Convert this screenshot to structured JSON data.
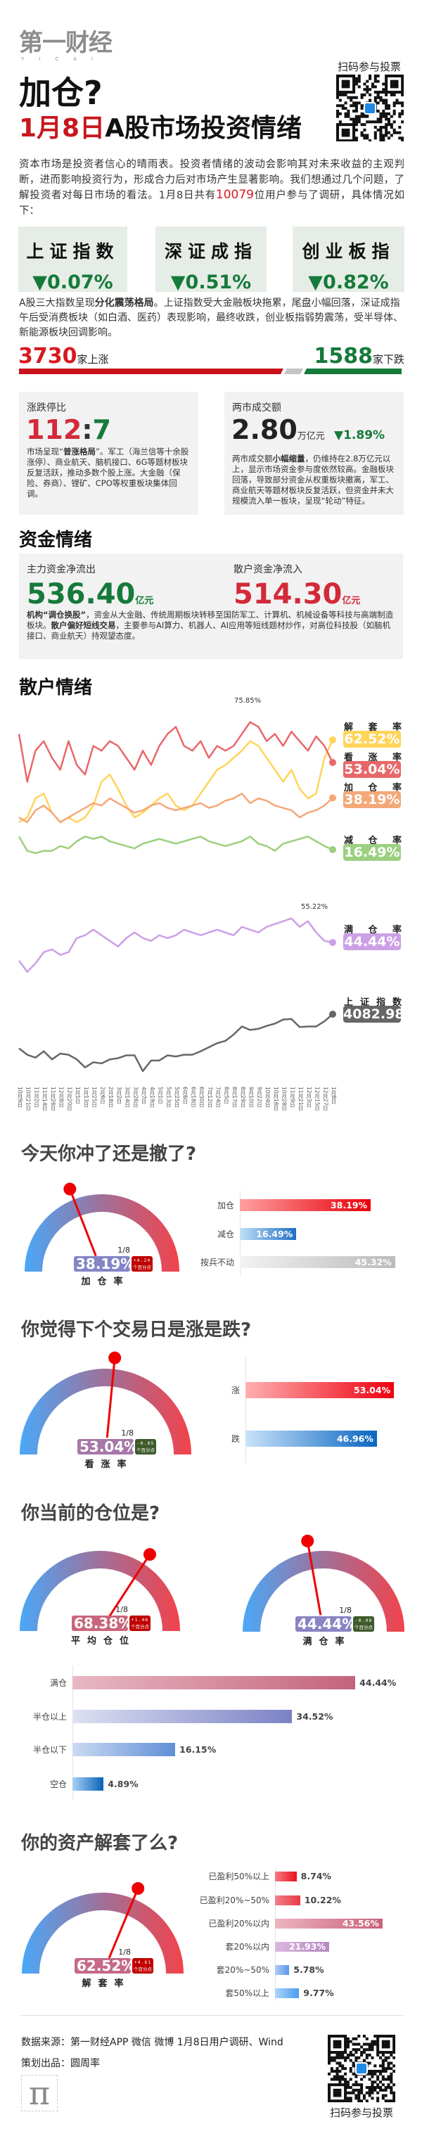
{
  "brand": {
    "logo": "第一财经",
    "logo_sub": "YICAI"
  },
  "qr": {
    "label": "扫码参与投票"
  },
  "header": {
    "title": "加仓?",
    "date": "1月8日",
    "subtitle_rest": "A股市场投资情绪"
  },
  "intro": {
    "before": "资本市场是投资者信心的晴雨表。投资者情绪的波动会影响其对未来收益的主观判断，进而影响投资行为，形成合力后对市场产生显著影响。我们想通过几个问题，了解投资者对每日市场的看法。1月8日共有",
    "count": "10079",
    "after": "位用户参与了调研，具体情况如下："
  },
  "indices": [
    {
      "name": "上证指数",
      "change": "▼0.07%"
    },
    {
      "name": "深证成指",
      "change": "▼0.51%"
    },
    {
      "name": "创业板指",
      "change": "▼0.82%"
    }
  ],
  "summary": {
    "pre": "A股三大指数呈现",
    "bold": "分化震荡格局",
    "post": "。上证指数受大金融板块拖累，尾盘小幅回落，深证成指午后受消费板块（如白酒、医药）表现影响，最终收跌，创业板指弱势震荡，受半导体、新能源板块回调影响。"
  },
  "breadth": {
    "up": "3730",
    "up_label": "家上涨",
    "down": "1588",
    "down_label": "家下跌",
    "up_count": 3730,
    "down_count": 1588
  },
  "limit_card": {
    "label": "涨跌停比",
    "up": "112",
    "sep": ":",
    "down": "7",
    "desc_pre": "市场呈现“",
    "desc_bold": "普涨格局",
    "desc_post": "”。军工（海兰信等十余股涨停）、商业航天、脑机接口、6G等题材板块反复活跃，推动多数个股上涨。大金融（保险、券商）、锂矿、CPO等权重板块集体回调。"
  },
  "turnover_card": {
    "label": "两市成交额",
    "value": "2.80",
    "unit": "万亿元",
    "change": "▼1.89%",
    "desc_pre": "两市成交额",
    "desc_bold": "小幅缩量",
    "desc_post": "，仍维持在2.8万亿元以上，显示市场资金参与度依然较高。金融板块回落，导致部分资金从权重板块撤离，军工、商业航天等题材板块反复活跃，但资金并未大规模流入单一板块，呈现“轮动”特征。"
  },
  "funds": {
    "title": "资金情绪",
    "main_label": "主力资金净流出",
    "main_value": "536.40",
    "main_unit": "亿元",
    "retail_label": "散户资金净流入",
    "retail_value": "514.30",
    "retail_unit": "亿元",
    "desc_b1": "机构“调仓换股”",
    "desc_1": "，资金从大金融、传统周期板块转移至国防军工、计算机、机械设备等科技与高端制造板块。",
    "desc_b2": "散户偏好短线交易",
    "desc_2": "，主要参与AI算力、机器人、AI应用等短线题材炒作，对高位科技股（如脑机接口、商业航天）持观望态度。"
  },
  "retail": {
    "title": "散户情绪"
  },
  "chart_data": [
    {
      "type": "line",
      "title": "",
      "x_labels": [
        "10月9日",
        "10月21日",
        "11月2日",
        "11月14日",
        "11月26日",
        "12月8日",
        "12月20日",
        "1月1日",
        "1月13日",
        "1月25日",
        "2月6日",
        "2月18日",
        "3月2日",
        "3月14日",
        "3月26日",
        "4月7日",
        "4月19日",
        "5月1日",
        "5月13日",
        "5月25日",
        "6月6日",
        "6月18日",
        "6月30日",
        "7月12日",
        "7月24日",
        "8月5日",
        "8月17日",
        "8月29日",
        "9月10日",
        "9月22日",
        "10月4日",
        "10月16日",
        "10月28日",
        "11月9日",
        "11月21日",
        "12月3日",
        "12月15日",
        "12月27日",
        "1月8日"
      ],
      "annotations": [
        {
          "text": "75.85%",
          "value": 75.85
        }
      ],
      "series": [
        {
          "name": "解套率",
          "latest": "62.52%",
          "color": "#ffd45a",
          "values": [
            28,
            30,
            38,
            40,
            32,
            28,
            30,
            28,
            30,
            35,
            45,
            48,
            42,
            35,
            30,
            32,
            35,
            38,
            40,
            35,
            33,
            35,
            40,
            45,
            50,
            52,
            55,
            58,
            62,
            60,
            55,
            50,
            45,
            50,
            42,
            38,
            40,
            55,
            62.52
          ]
        },
        {
          "name": "看涨率",
          "latest": "53.04%",
          "color": "#e8686a",
          "values": [
            65,
            45,
            58,
            62,
            55,
            50,
            62,
            52,
            48,
            60,
            58,
            62,
            60,
            55,
            50,
            58,
            52,
            60,
            65,
            68,
            60,
            58,
            62,
            55,
            60,
            58,
            60,
            65,
            70,
            68,
            62,
            65,
            60,
            66,
            62,
            58,
            64,
            60,
            53.04
          ]
        },
        {
          "name": "加仓率",
          "latest": "38.19%",
          "color": "#f4a878",
          "values": [
            30,
            28,
            33,
            35,
            32,
            28,
            30,
            32,
            34,
            36,
            35,
            38,
            36,
            34,
            32,
            33,
            35,
            36,
            34,
            33,
            34,
            35,
            36,
            34,
            35,
            37,
            38,
            40,
            36,
            38,
            37,
            35,
            34,
            33,
            30,
            32,
            33,
            35,
            38.19
          ]
        },
        {
          "name": "减仓率",
          "latest": "16.49%",
          "color": "#9ccf80",
          "values": [
            22,
            16,
            15,
            16,
            16,
            18,
            17,
            20,
            22,
            21,
            22,
            20,
            19,
            18,
            17,
            19,
            20,
            21,
            20,
            19,
            20,
            21,
            22,
            20,
            19,
            18,
            19,
            20,
            22,
            19,
            18,
            16,
            19,
            20,
            21,
            22,
            20,
            18,
            16.49
          ]
        }
      ]
    },
    {
      "type": "line",
      "title": "",
      "annotations": [
        {
          "text": "55.22%",
          "value": 55.22
        }
      ],
      "series": [
        {
          "name": "满仓率",
          "latest": "44.44%",
          "color": "#cc9fe6",
          "values": [
            38,
            34,
            37,
            41,
            42,
            40,
            41,
            46,
            47,
            49,
            47,
            45,
            43,
            46,
            48,
            46,
            45,
            47,
            46,
            47,
            49,
            48,
            47,
            48,
            49,
            48,
            47,
            50,
            49,
            48,
            50,
            51,
            52,
            53,
            50,
            52,
            48,
            45,
            44.44
          ]
        }
      ]
    },
    {
      "type": "line",
      "title": "",
      "series": [
        {
          "name": "上证指数",
          "latest": "4082.98",
          "color": "#666666",
          "values": [
            3490,
            3380,
            3330,
            3440,
            3300,
            3400,
            3380,
            3300,
            3160,
            3250,
            3230,
            3300,
            3320,
            3370,
            3370,
            3096,
            3280,
            3280,
            3370,
            3350,
            3380,
            3380,
            3440,
            3510,
            3580,
            3620,
            3730,
            3870,
            3810,
            3830,
            3880,
            3920,
            3990,
            4000,
            3860,
            3870,
            3870,
            3960,
            4082.98
          ]
        }
      ]
    }
  ],
  "q1": {
    "title": "今天你冲了还是撤了?",
    "gauge": {
      "value": 38.19,
      "value_text": "38.19%",
      "date": "1/8",
      "change": "+4.24",
      "change_unit": "个百分点",
      "label": "加仓率",
      "box_color": "#8484c6",
      "badge_color": "#c00000"
    },
    "bars": [
      {
        "label": "加仓",
        "value": 38.19,
        "text": "38.19%"
      },
      {
        "label": "减仓",
        "value": 16.49,
        "text": "16.49%"
      },
      {
        "label": "按兵不动",
        "value": 45.32,
        "text": "45.32%"
      }
    ]
  },
  "q2": {
    "title": "你觉得下个交易日是涨是跌?",
    "gauge": {
      "value": 53.04,
      "value_text": "53.04%",
      "date": "1/8",
      "change": "-0.85",
      "change_unit": "个百分点",
      "label": "看涨率",
      "box_color": "#a678a8",
      "badge_color": "#3d5a2a"
    },
    "bars": [
      {
        "label": "涨",
        "value": 53.04,
        "text": "53.04%"
      },
      {
        "label": "跌",
        "value": 46.96,
        "text": "46.96%"
      }
    ]
  },
  "q3": {
    "title": "你当前的仓位是?",
    "gauges": [
      {
        "value": 68.38,
        "value_text": "68.38%",
        "date": "1/8",
        "change": "+1.46",
        "change_unit": "个百分点",
        "label": "平均仓位",
        "box_color": "#c8667a",
        "badge_color": "#c00000"
      },
      {
        "value": 44.44,
        "value_text": "44.44%",
        "date": "1/8",
        "change": "-0.98",
        "change_unit": "个百分点",
        "label": "满仓率",
        "box_color": "#8a84c4",
        "badge_color": "#3d5a2a"
      }
    ],
    "bars": [
      {
        "label": "满仓",
        "value": 44.44,
        "text": "44.44%"
      },
      {
        "label": "半仓以上",
        "value": 34.52,
        "text": "34.52%"
      },
      {
        "label": "半仓以下",
        "value": 16.15,
        "text": "16.15%"
      },
      {
        "label": "空仓",
        "value": 4.89,
        "text": "4.89%"
      }
    ]
  },
  "q4": {
    "title": "你的资产解套了么?",
    "gauge": {
      "value": 62.52,
      "value_text": "62.52%",
      "date": "1/8",
      "change": "+4.61",
      "change_unit": "个百分点",
      "label": "解套率",
      "box_color": "#c46a86",
      "badge_color": "#c00000"
    },
    "bars": [
      {
        "label": "已盈利50%以上",
        "value": 8.74,
        "text": "8.74%"
      },
      {
        "label": "已盈利20%~50%",
        "value": 10.22,
        "text": "10.22%"
      },
      {
        "label": "已盈利20%以内",
        "value": 43.56,
        "text": "43.56%"
      },
      {
        "label": "套20%以内",
        "value": 21.93,
        "text": "21.93%"
      },
      {
        "label": "套20%~50%",
        "value": 5.78,
        "text": "5.78%"
      },
      {
        "label": "套50%以上",
        "value": 9.77,
        "text": "9.77%"
      }
    ]
  },
  "footer": {
    "source": "数据来源：第一财经APP 微信 微博 1月8日用户调研、Wind",
    "producer": "策划出品：圆周率",
    "logo_glyph": "π"
  },
  "colors": {
    "red": "#d71920",
    "green": "#157a3a",
    "gauge_start": "#4aa8f8",
    "gauge_end": "#f2434b",
    "needle": "#ee0000"
  }
}
